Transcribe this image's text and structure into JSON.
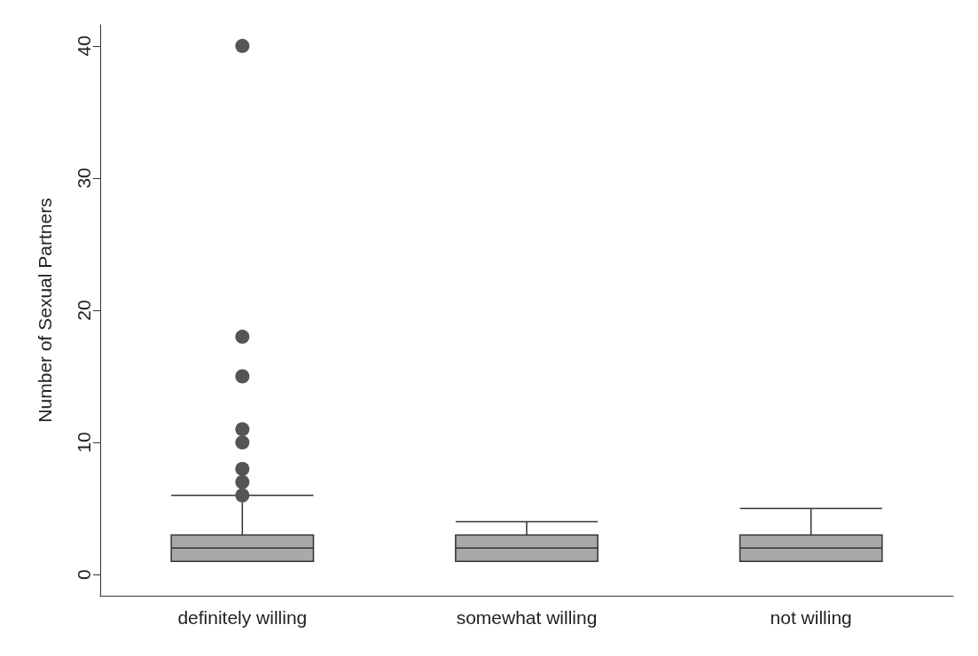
{
  "chart_data": {
    "type": "box",
    "ylabel": "Number of Sexual Partners",
    "categories": [
      "definitely willing",
      "somewhat willing",
      "not willing"
    ],
    "ylim": [
      -1.6,
      41.6
    ],
    "yticks": [
      0,
      10,
      20,
      30,
      40
    ],
    "grid": false,
    "series": [
      {
        "color": "#a9a9a9",
        "boxes": [
          {
            "low": 1,
            "q1": 1,
            "median": 2,
            "q3": 3,
            "high": 6
          },
          {
            "low": 1,
            "q1": 1,
            "median": 2,
            "q3": 3,
            "high": 4
          },
          {
            "low": 1,
            "q1": 1,
            "median": 2,
            "q3": 3,
            "high": 5
          }
        ]
      },
      {
        "type": "scatter",
        "color": "#555555",
        "marker": "circle",
        "x": [
          "definitely willing",
          "definitely willing",
          "definitely willing",
          "definitely willing",
          "definitely willing",
          "definitely willing",
          "definitely willing",
          "definitely willing"
        ],
        "values": [
          6,
          7,
          8,
          10,
          11,
          15,
          18,
          40
        ]
      }
    ]
  }
}
